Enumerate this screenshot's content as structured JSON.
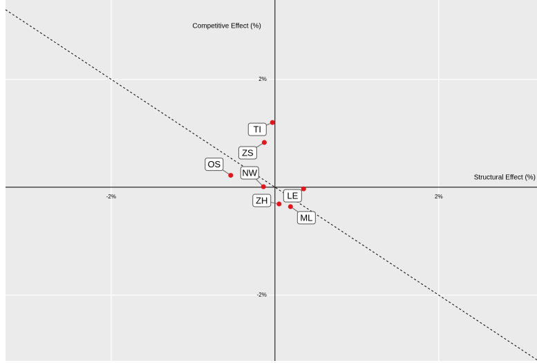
{
  "chart_data": {
    "type": "scatter",
    "x_label": "Structural Effect (%)",
    "y_label": "Competitive Effect (%)",
    "labels": [
      "TI",
      "ZS",
      "OS",
      "NW",
      "LE",
      "ZH",
      "ML"
    ],
    "x": [
      -0.03,
      -0.13,
      -0.54,
      -0.14,
      0.35,
      0.05,
      0.19
    ],
    "values": [
      1.2,
      0.83,
      0.22,
      0.01,
      -0.03,
      -0.31,
      -0.36
    ],
    "color": "#e8141c",
    "xlim": [
      -3.29,
      3.2
    ],
    "ylim": [
      -3.22,
      3.47
    ],
    "xticks": [
      {
        "value": -2,
        "label": "-2%"
      },
      {
        "value": 2,
        "label": "2%"
      }
    ],
    "yticks": [
      {
        "value": -2,
        "label": "-2%"
      },
      {
        "value": 2,
        "label": "2%"
      }
    ],
    "ref_line": {
      "slope": -1,
      "intercept": 0
    },
    "grid": true
  }
}
